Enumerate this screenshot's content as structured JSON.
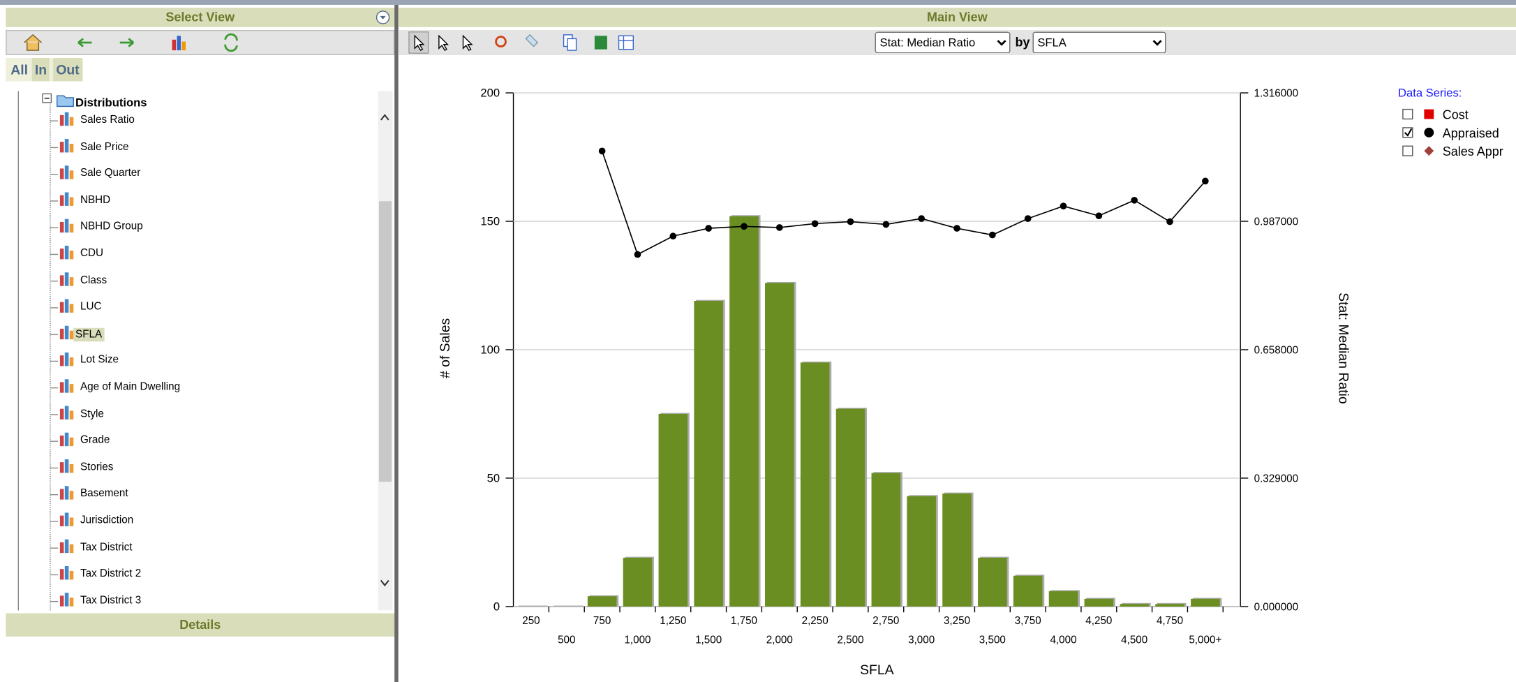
{
  "sidebar": {
    "title": "Select View",
    "tabs": [
      "All",
      "In",
      "Out"
    ],
    "folder": "Distributions",
    "items": [
      "Sales Ratio",
      "Sale Price",
      "Sale Quarter",
      "NBHD",
      "NBHD Group",
      "CDU",
      "Class",
      "LUC",
      "SFLA",
      "Lot Size",
      "Age of Main Dwelling",
      "Style",
      "Grade",
      "Stories",
      "Basement",
      "Jurisdiction",
      "Tax District",
      "Tax District 2",
      "Tax District 3"
    ],
    "selected": 8,
    "details": "Details"
  },
  "main": {
    "title": "Main View",
    "stat_select": "Stat: Median Ratio",
    "by_label": "by",
    "by_select": "SFLA"
  },
  "chart_data": {
    "type": "bar",
    "xlabel": "SFLA",
    "ylabel": "# of Sales",
    "y2label": "Stat: Median Ratio",
    "categories": [
      "250",
      "500",
      "750",
      "1,000",
      "1,250",
      "1,500",
      "1,750",
      "2,000",
      "2,250",
      "2,500",
      "2,750",
      "3,000",
      "3,250",
      "3,500",
      "3,750",
      "4,000",
      "4,250",
      "4,500",
      "4,750",
      "5,000+"
    ],
    "values": [
      0,
      0,
      4,
      19,
      75,
      119,
      152,
      126,
      95,
      77,
      52,
      43,
      44,
      19,
      12,
      6,
      3,
      1,
      1,
      3
    ],
    "color": "#6b8e23",
    "ylim": [
      0,
      200
    ],
    "yticks": [
      0,
      50,
      100,
      150,
      200
    ],
    "y2lim": [
      0,
      1.316
    ],
    "y2ticks": [
      {
        "value": 0,
        "label": "0.000000"
      },
      {
        "value": 0.329,
        "label": "0.329000"
      },
      {
        "value": 0.658,
        "label": "0.658000"
      },
      {
        "value": 0.987,
        "label": "0.987000"
      },
      {
        "value": 1.316,
        "label": "1.316000"
      }
    ],
    "grid": true,
    "legend_title": "Data Series:",
    "series": [
      {
        "name": "Cost",
        "color": "#e00000",
        "marker": "square",
        "checked": false,
        "axis": "y2",
        "values": [
          null,
          null,
          null,
          null,
          null,
          null,
          null,
          null,
          null,
          null,
          null,
          null,
          null,
          null,
          null,
          null,
          null,
          null,
          null,
          null
        ]
      },
      {
        "name": "Appraised",
        "color": "#000000",
        "marker": "circle",
        "checked": true,
        "axis": "y2",
        "values": [
          null,
          null,
          1.167,
          0.902,
          0.949,
          0.969,
          0.974,
          0.971,
          0.981,
          0.986,
          0.979,
          0.994,
          0.969,
          0.952,
          0.994,
          1.026,
          1.001,
          1.041,
          0.986,
          1.09
        ]
      },
      {
        "name": "Sales Appr",
        "color": "#a0403a",
        "marker": "diamond",
        "checked": false,
        "axis": "y2",
        "values": [
          null,
          null,
          null,
          null,
          null,
          null,
          null,
          null,
          null,
          null,
          null,
          null,
          null,
          null,
          null,
          null,
          null,
          null,
          null,
          null
        ]
      }
    ]
  }
}
